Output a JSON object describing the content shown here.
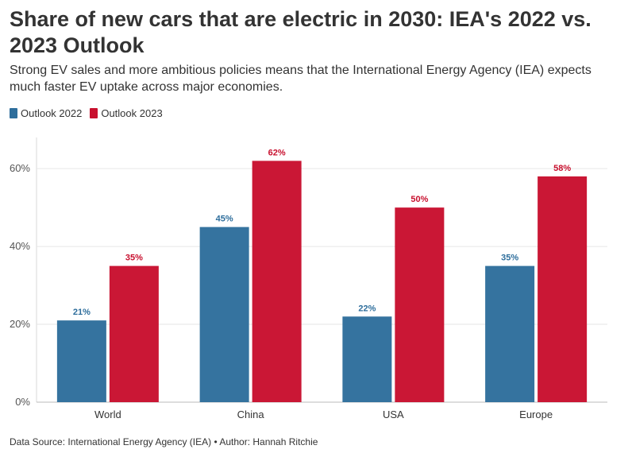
{
  "title": "Share of new cars that are electric in 2030: IEA's 2022 vs. 2023 Outlook",
  "subtitle": "Strong EV sales and more ambitious policies means that the International Energy Agency (IEA) expects much faster EV uptake across major economies.",
  "source": "Data Source: International Energy Agency (IEA) • Author: Hannah Ritchie",
  "colors": {
    "outlook_2022": "#2e6e9c",
    "outlook_2023": "#c8102e"
  },
  "chart_data": {
    "type": "bar",
    "title": "Share of new cars that are electric in 2030: IEA's 2022 vs. 2023 Outlook",
    "categories": [
      "World",
      "China",
      "USA",
      "Europe"
    ],
    "series": [
      {
        "name": "Outlook 2022",
        "values": [
          21,
          45,
          22,
          35
        ]
      },
      {
        "name": "Outlook 2023",
        "values": [
          35,
          62,
          50,
          58
        ]
      }
    ],
    "ylim": [
      0,
      68
    ],
    "yticks": [
      0,
      20,
      40,
      60
    ],
    "ytick_labels": [
      "0%",
      "20%",
      "40%",
      "60%"
    ],
    "data_labels": [
      [
        "21%",
        "45%",
        "22%",
        "35%"
      ],
      [
        "35%",
        "62%",
        "50%",
        "58%"
      ]
    ],
    "grid": true,
    "legend": "top-left"
  }
}
